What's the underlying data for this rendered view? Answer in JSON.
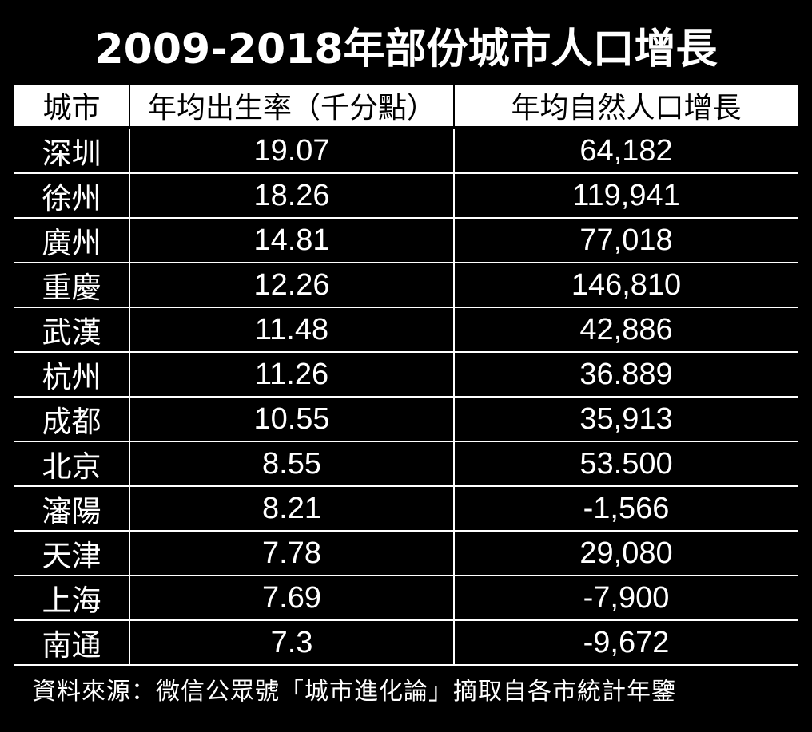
{
  "chart_data": {
    "type": "table",
    "title": "2009-2018年部份城市人口增長",
    "columns": [
      "城市",
      "年均出生率（千分點）",
      "年均自然人口增長"
    ],
    "rows": [
      {
        "city": "深圳",
        "birth_rate": "19.07",
        "growth": "64,182"
      },
      {
        "city": "徐州",
        "birth_rate": "18.26",
        "growth": "119,941"
      },
      {
        "city": "廣州",
        "birth_rate": "14.81",
        "growth": "77,018"
      },
      {
        "city": "重慶",
        "birth_rate": "12.26",
        "growth": "146,810"
      },
      {
        "city": "武漢",
        "birth_rate": "11.48",
        "growth": "42,886"
      },
      {
        "city": "杭州",
        "birth_rate": "11.26",
        "growth": "36.889"
      },
      {
        "city": "成都",
        "birth_rate": "10.55",
        "growth": "35,913"
      },
      {
        "city": "北京",
        "birth_rate": "8.55",
        "growth": "53.500"
      },
      {
        "city": "瀋陽",
        "birth_rate": "8.21",
        "growth": "-1,566"
      },
      {
        "city": "天津",
        "birth_rate": "7.78",
        "growth": "29,080"
      },
      {
        "city": "上海",
        "birth_rate": "7.69",
        "growth": "-7,900"
      },
      {
        "city": "南通",
        "birth_rate": "7.3",
        "growth": "-9,672"
      }
    ],
    "source": "資料來源：微信公眾號「城市進化論」摘取自各市統計年鑒"
  },
  "colors": {
    "background": "#000000",
    "text": "#ffffff",
    "header_background": "#ffffff",
    "header_text": "#000000"
  }
}
